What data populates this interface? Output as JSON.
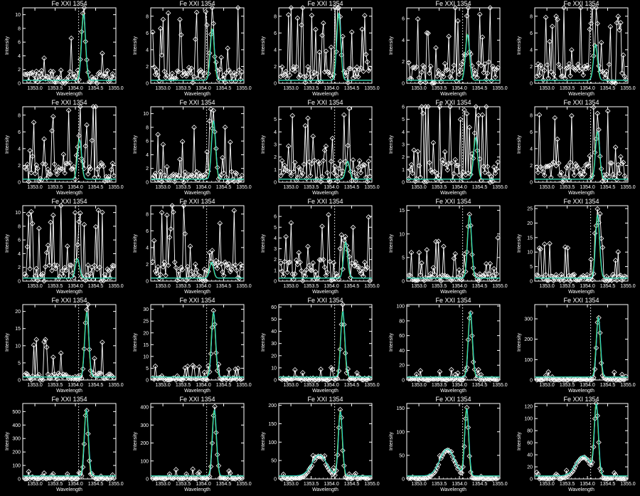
{
  "colors": {
    "background": "#000000",
    "data": "#ffffff",
    "fit_primary": "#2ed3d3",
    "fit_secondary": "#19c419",
    "fit_tertiary": "#e8e83a",
    "reference_line": "#ffffff"
  },
  "chart_data": {
    "type": "line",
    "layout": "5x5 grid of line/marker plots",
    "panel_title": "Fe XXI 1354",
    "xlabel": "Wavelength",
    "ylabel": "Intensity",
    "xlim": [
      1352.7,
      1355.0
    ],
    "x_ticks": [
      "1353.0",
      "1353.5",
      "1354.0",
      "1354.5",
      "1355.0"
    ],
    "reference_wavelength": 1354.08,
    "grid": false,
    "legend": "none",
    "panels": [
      {
        "ymax": 11,
        "y_ticks": [
          "0",
          "2",
          "4",
          "6",
          "8",
          "10"
        ],
        "peak_x": 1354.2,
        "peak": 10.2,
        "noise": 5
      },
      {
        "ymax": 9,
        "y_ticks": [
          "0",
          "2",
          "4",
          "6",
          "8"
        ],
        "peak_x": 1354.22,
        "peak": 6.5,
        "noise": 5
      },
      {
        "ymax": 9,
        "y_ticks": [
          "0",
          "2",
          "4",
          "6",
          "8"
        ],
        "peak_x": 1354.18,
        "peak": 8.5,
        "noise": 5
      },
      {
        "ymax": 7,
        "y_ticks": [
          "0",
          "2",
          "4",
          "6"
        ],
        "peak_x": 1354.2,
        "peak": 4.5,
        "noise": 5
      },
      {
        "ymax": 9,
        "y_ticks": [
          "0",
          "2",
          "4",
          "6",
          "8"
        ],
        "peak_x": 1354.2,
        "peak": 4.5,
        "noise": 6
      },
      {
        "ymax": 9,
        "y_ticks": [
          "0",
          "2",
          "4",
          "6",
          "8"
        ],
        "peak_x": 1354.1,
        "peak": 5,
        "noise": 6
      },
      {
        "ymax": 11,
        "y_ticks": [
          "0",
          "2",
          "4",
          "6",
          "8",
          "10"
        ],
        "peak_x": 1354.25,
        "peak": 9,
        "noise": 4
      },
      {
        "ymax": 6,
        "y_ticks": [
          "0",
          "1",
          "2",
          "3",
          "4",
          "5"
        ],
        "peak_x": 1354.4,
        "peak": 1.5,
        "noise": 4.5
      },
      {
        "ymax": 6,
        "y_ticks": [
          "0",
          "1",
          "2",
          "3",
          "4",
          "5",
          "6"
        ],
        "peak_x": 1354.4,
        "peak": 3.5,
        "noise": 4.5
      },
      {
        "ymax": 9,
        "y_ticks": [
          "0",
          "2",
          "4",
          "6",
          "8"
        ],
        "peak_x": 1354.25,
        "peak": 6,
        "noise": 6
      },
      {
        "ymax": 11,
        "y_ticks": [
          "0",
          "2",
          "4",
          "6",
          "8",
          "10"
        ],
        "peak_x": 1354.05,
        "peak": 3,
        "noise": 6
      },
      {
        "ymax": 9,
        "y_ticks": [
          "0",
          "2",
          "4",
          "6",
          "8"
        ],
        "peak_x": 1354.2,
        "peak": 2,
        "noise": 6
      },
      {
        "ymax": 7,
        "y_ticks": [
          "0",
          "1",
          "2",
          "3",
          "4",
          "5",
          "6"
        ],
        "peak_x": 1354.35,
        "peak": 3.5,
        "noise": 5
      },
      {
        "ymax": 16,
        "y_ticks": [
          "0",
          "5",
          "10",
          "15"
        ],
        "peak_x": 1354.25,
        "peak": 14,
        "noise": 4
      },
      {
        "ymax": 26,
        "y_ticks": [
          "0",
          "5",
          "10",
          "15",
          "20",
          "25"
        ],
        "peak_x": 1354.25,
        "peak": 23,
        "noise": 6
      },
      {
        "ymax": 22,
        "y_ticks": [
          "0",
          "5",
          "10",
          "15",
          "20"
        ],
        "peak_x": 1354.28,
        "peak": 20,
        "noise": 5
      },
      {
        "ymax": 32,
        "y_ticks": [
          "0",
          "5",
          "10",
          "15",
          "20",
          "25",
          "30"
        ],
        "peak_x": 1354.25,
        "peak": 29,
        "noise": 5
      },
      {
        "ymax": 62,
        "y_ticks": [
          "0",
          "10",
          "20",
          "30",
          "40",
          "50",
          "60"
        ],
        "peak_x": 1354.28,
        "peak": 57,
        "noise": 8
      },
      {
        "ymax": 102,
        "y_ticks": [
          "0",
          "20",
          "40",
          "60",
          "80",
          "100"
        ],
        "peak_x": 1354.27,
        "peak": 93,
        "noise": 10
      },
      {
        "ymax": 370,
        "y_ticks": [
          "0",
          "100",
          "200",
          "300"
        ],
        "peak_x": 1354.27,
        "peak": 310,
        "noise": 30
      },
      {
        "ymax": 560,
        "y_ticks": [
          "0",
          "100",
          "200",
          "300",
          "400",
          "500"
        ],
        "peak_x": 1354.27,
        "peak": 520,
        "noise": 40
      },
      {
        "ymax": 420,
        "y_ticks": [
          "0",
          "100",
          "200",
          "300",
          "400"
        ],
        "peak_x": 1354.27,
        "peak": 390,
        "noise": 40
      },
      {
        "ymax": 205,
        "y_ticks": [
          "0",
          "50",
          "100",
          "150",
          "200"
        ],
        "peak_x": 1354.22,
        "peak": 185,
        "noise": 15,
        "bump_x": 1353.7,
        "bump": 60
      },
      {
        "ymax": 160,
        "y_ticks": [
          "0",
          "50",
          "100",
          "150"
        ],
        "peak_x": 1354.18,
        "peak": 150,
        "noise": 10,
        "bump_x": 1353.7,
        "bump": 60
      },
      {
        "ymax": 125,
        "y_ticks": [
          "0",
          "20",
          "40",
          "60",
          "80",
          "100",
          "120"
        ],
        "peak_x": 1354.22,
        "peak": 120,
        "noise": 8,
        "bump_x": 1353.9,
        "bump": 35
      }
    ]
  }
}
